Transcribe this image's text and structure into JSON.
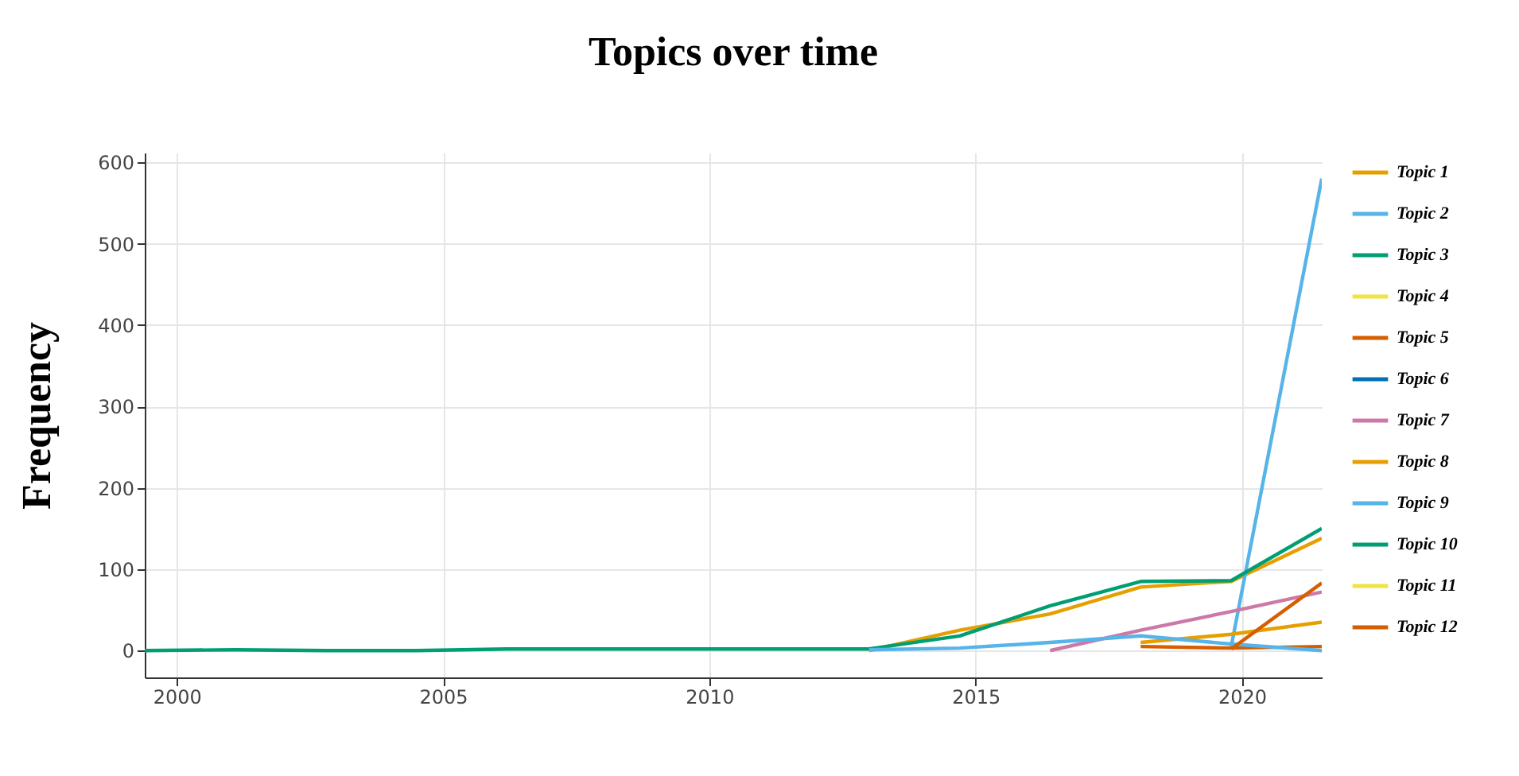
{
  "chart_data": {
    "type": "line",
    "title": "Topics over time",
    "ylabel": "Frequency",
    "x": [
      1999.4,
      2001.1,
      2002.8,
      2004.5,
      2006.2,
      2007.9,
      2009.6,
      2011.3,
      2013,
      2014.7,
      2016.4,
      2018.1,
      2019.8,
      2021.5
    ],
    "series": [
      {
        "name": "Topic 1",
        "color": "#e69f00",
        "values": [
          null,
          null,
          null,
          null,
          null,
          null,
          null,
          null,
          0,
          25,
          45,
          78,
          85,
          138
        ]
      },
      {
        "name": "Topic 2",
        "color": "#56b4e9",
        "values": [
          null,
          null,
          null,
          null,
          null,
          null,
          null,
          null,
          null,
          null,
          null,
          null,
          5,
          580
        ]
      },
      {
        "name": "Topic 3",
        "color": "#009e73",
        "values": [
          0,
          1,
          0,
          0,
          2,
          2,
          2,
          2,
          2,
          18,
          55,
          85,
          86,
          150
        ]
      },
      {
        "name": "Topic 4",
        "color": "#f0e442",
        "values": [
          null,
          null,
          null,
          null,
          null,
          null,
          null,
          null,
          null,
          null,
          null,
          null,
          null,
          null
        ]
      },
      {
        "name": "Topic 5",
        "color": "#d55e00",
        "values": [
          null,
          null,
          null,
          null,
          null,
          null,
          null,
          null,
          null,
          null,
          null,
          5,
          3,
          5
        ]
      },
      {
        "name": "Topic 6",
        "color": "#0072b2",
        "values": [
          null,
          null,
          null,
          null,
          null,
          null,
          null,
          null,
          null,
          null,
          null,
          null,
          null,
          null
        ]
      },
      {
        "name": "Topic 7",
        "color": "#cc79a7",
        "values": [
          null,
          null,
          null,
          null,
          null,
          null,
          null,
          null,
          null,
          null,
          0,
          25,
          48,
          72
        ]
      },
      {
        "name": "Topic 8",
        "color": "#e69f00",
        "values": [
          null,
          null,
          null,
          null,
          null,
          null,
          null,
          null,
          null,
          null,
          null,
          10,
          20,
          35
        ]
      },
      {
        "name": "Topic 9",
        "color": "#56b4e9",
        "values": [
          null,
          null,
          null,
          null,
          null,
          null,
          null,
          null,
          1,
          3,
          10,
          18,
          8,
          0
        ]
      },
      {
        "name": "Topic 10",
        "color": "#009e73",
        "values": [
          null,
          null,
          null,
          null,
          null,
          null,
          null,
          null,
          null,
          null,
          null,
          null,
          null,
          null
        ]
      },
      {
        "name": "Topic 11",
        "color": "#f0e442",
        "values": [
          null,
          null,
          null,
          null,
          null,
          null,
          null,
          null,
          null,
          null,
          null,
          null,
          null,
          null
        ]
      },
      {
        "name": "Topic 12",
        "color": "#d55e00",
        "values": [
          null,
          null,
          null,
          null,
          null,
          null,
          null,
          null,
          null,
          null,
          null,
          null,
          2,
          83
        ]
      }
    ],
    "xlim": [
      1999.4,
      2021.5
    ],
    "xticks": [
      2000,
      2005,
      2010,
      2015,
      2020
    ],
    "ylim": [
      -33,
      612
    ],
    "yticks": [
      0,
      100,
      200,
      300,
      400,
      500,
      600
    ],
    "grid": true,
    "legend": "right",
    "line_style": "solid",
    "marker": "none"
  }
}
